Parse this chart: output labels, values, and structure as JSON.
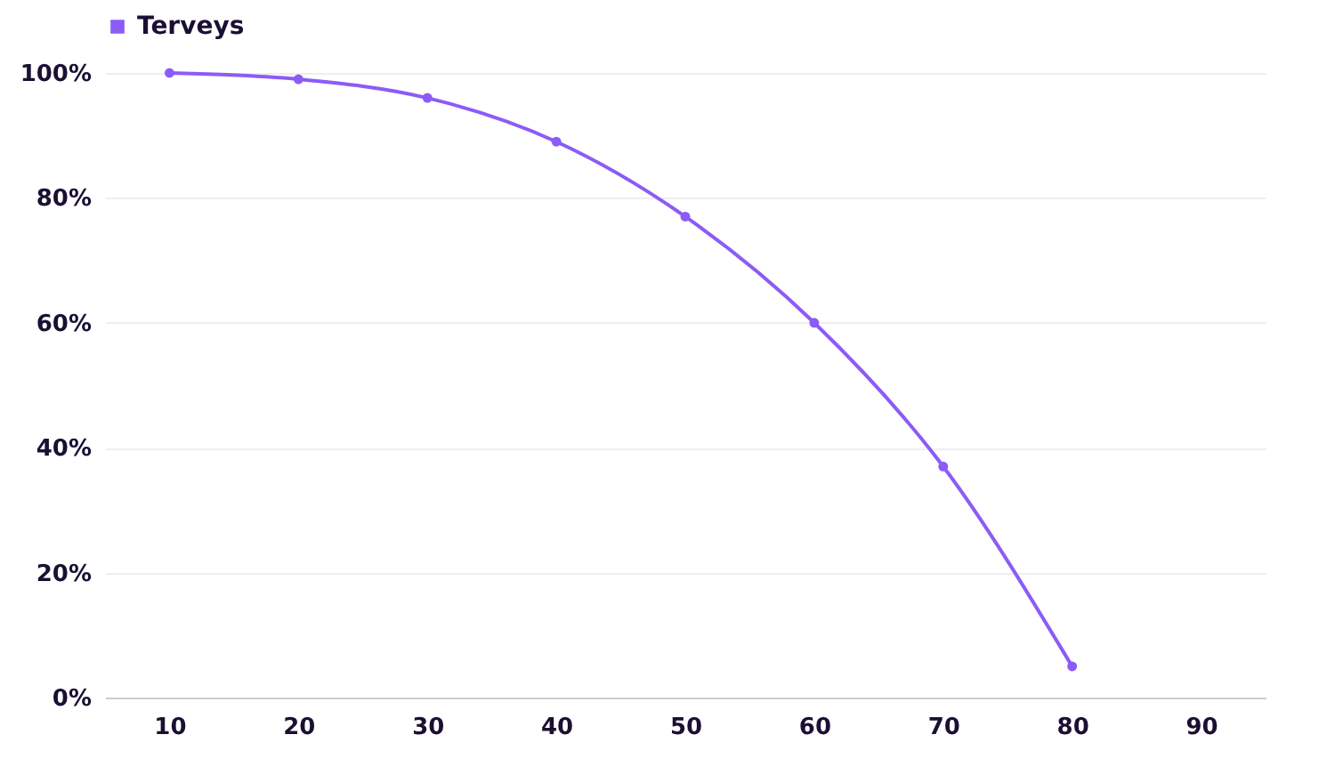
{
  "chart_data": {
    "type": "line",
    "categories": [
      "10",
      "20",
      "30",
      "40",
      "50",
      "60",
      "70",
      "80",
      "90"
    ],
    "series": [
      {
        "name": "Terveys",
        "color": "#8b5cf6",
        "values": [
          100,
          99,
          96,
          89,
          77,
          60,
          37,
          5,
          null
        ]
      }
    ],
    "ylim": [
      0,
      100
    ],
    "yticks": [
      {
        "value": 0,
        "label": "0%"
      },
      {
        "value": 20,
        "label": "20%"
      },
      {
        "value": 40,
        "label": "40%"
      },
      {
        "value": 60,
        "label": "60%"
      },
      {
        "value": 80,
        "label": "80%"
      },
      {
        "value": 100,
        "label": "100%"
      }
    ],
    "grid": "y",
    "legend": "top",
    "marker": "circle",
    "line_style": "solid"
  }
}
